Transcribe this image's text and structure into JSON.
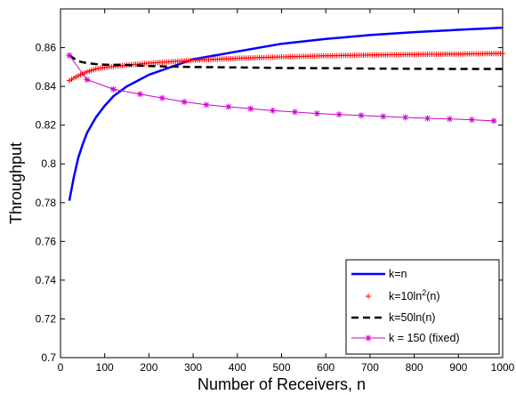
{
  "chart_data": {
    "type": "line",
    "xlabel": "Number of Receivers, n",
    "ylabel": "Throughput",
    "xlim": [
      0,
      1000
    ],
    "ylim": [
      0.7,
      0.88
    ],
    "xticks": [
      0,
      100,
      200,
      300,
      400,
      500,
      600,
      700,
      800,
      900,
      1000
    ],
    "yticks": [
      0.7,
      0.72,
      0.74,
      0.76,
      0.78,
      0.8,
      0.82,
      0.84,
      0.86
    ],
    "xtick_labels": [
      "0",
      "100",
      "200",
      "300",
      "400",
      "500",
      "600",
      "700",
      "800",
      "900",
      "1000"
    ],
    "ytick_labels": [
      "0.7",
      "0.72",
      "0.74",
      "0.76",
      "0.78",
      "0.8",
      "0.82",
      "0.84",
      "0.86"
    ],
    "grid": false,
    "legend_position": "bottom-right",
    "series": [
      {
        "name": "k=n",
        "color": "#0000ff",
        "style": "solid-thick",
        "x": [
          20,
          30,
          40,
          50,
          60,
          70,
          80,
          100,
          120,
          150,
          200,
          250,
          300,
          350,
          400,
          500,
          600,
          700,
          800,
          900,
          1000
        ],
        "y": [
          0.781,
          0.793,
          0.803,
          0.81,
          0.816,
          0.82,
          0.824,
          0.83,
          0.835,
          0.84,
          0.846,
          0.85,
          0.854,
          0.856,
          0.858,
          0.862,
          0.8645,
          0.8665,
          0.868,
          0.8692,
          0.8703
        ]
      },
      {
        "name": "k=10ln^2(n)",
        "color": "#ff0000",
        "style": "plus-markers",
        "x": [
          20,
          40,
          60,
          80,
          100,
          150,
          200,
          300,
          400,
          500,
          600,
          700,
          800,
          900,
          1000
        ],
        "y": [
          0.843,
          0.8455,
          0.8475,
          0.849,
          0.8498,
          0.851,
          0.852,
          0.8535,
          0.8545,
          0.8552,
          0.8558,
          0.8562,
          0.8565,
          0.8567,
          0.857
        ]
      },
      {
        "name": "k=50ln(n)",
        "color": "#000000",
        "style": "dashed-thick",
        "x": [
          20,
          40,
          60,
          80,
          100,
          150,
          200,
          300,
          400,
          500,
          600,
          700,
          800,
          900,
          1000
        ],
        "y": [
          0.856,
          0.853,
          0.852,
          0.8515,
          0.8512,
          0.851,
          0.8505,
          0.85,
          0.8498,
          0.8495,
          0.8494,
          0.8492,
          0.8491,
          0.849,
          0.849
        ]
      },
      {
        "name": "k = 150 (fixed)",
        "color": "#cc00cc",
        "style": "star-markers",
        "x": [
          20,
          60,
          120,
          180,
          230,
          280,
          330,
          380,
          430,
          480,
          530,
          580,
          630,
          680,
          730,
          780,
          830,
          880,
          930,
          980
        ],
        "y": [
          0.856,
          0.8435,
          0.8385,
          0.836,
          0.834,
          0.832,
          0.8305,
          0.8295,
          0.8285,
          0.8275,
          0.8268,
          0.826,
          0.8255,
          0.825,
          0.8245,
          0.824,
          0.8235,
          0.8232,
          0.8228,
          0.8222
        ]
      }
    ],
    "legend": {
      "entries": [
        {
          "text": "k=n"
        },
        {
          "prefix": "k=10ln",
          "sup": "2",
          "suffix": "(n)"
        },
        {
          "text": "k=50ln(n)"
        },
        {
          "text": "k = 150 (fixed)"
        }
      ]
    }
  }
}
